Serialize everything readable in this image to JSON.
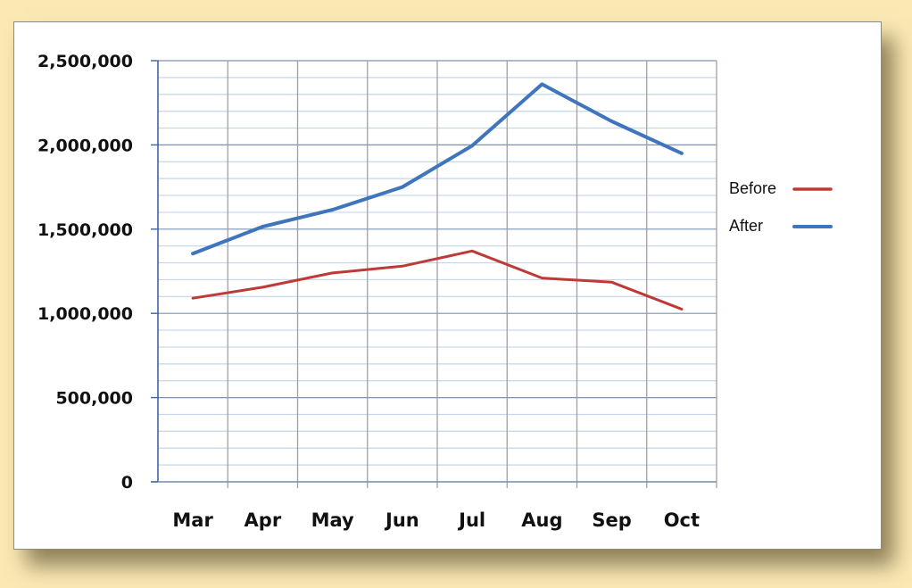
{
  "chart_data": {
    "type": "line",
    "title": "",
    "xlabel": "",
    "ylabel": "",
    "categories": [
      "Mar",
      "Apr",
      "May",
      "Jun",
      "Jul",
      "Aug",
      "Sep",
      "Oct"
    ],
    "series": [
      {
        "name": "Before",
        "color": "#be3a36",
        "values": [
          1090000,
          1155000,
          1240000,
          1280000,
          1370000,
          1210000,
          1185000,
          1025000
        ]
      },
      {
        "name": "After",
        "color": "#3f75bd",
        "values": [
          1355000,
          1515000,
          1615000,
          1750000,
          1995000,
          2360000,
          2140000,
          1950000
        ]
      }
    ],
    "ylim": [
      0,
      2500000
    ],
    "yticks": [
      0,
      500000,
      1000000,
      1500000,
      2000000,
      2500000
    ],
    "ytick_labels": [
      "0",
      "500,000",
      "1,000,000",
      "1,500,000",
      "2,000,000",
      "2,500,000"
    ],
    "minor_gridlines_step": 100000,
    "grid": true,
    "legend_position": "right"
  }
}
